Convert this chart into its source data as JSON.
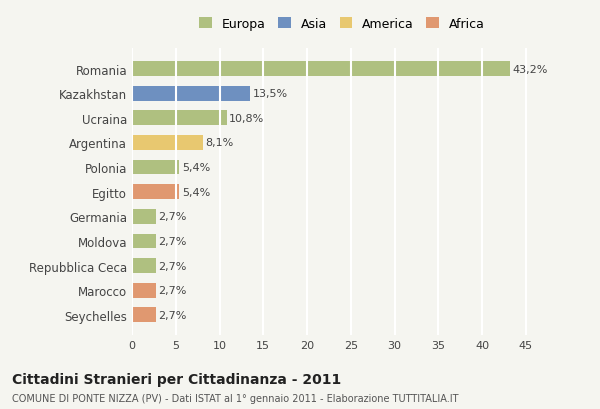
{
  "countries": [
    "Romania",
    "Kazakhstan",
    "Ucraina",
    "Argentina",
    "Polonia",
    "Egitto",
    "Germania",
    "Moldova",
    "Repubblica Ceca",
    "Marocco",
    "Seychelles"
  ],
  "values": [
    43.2,
    13.5,
    10.8,
    8.1,
    5.4,
    5.4,
    2.7,
    2.7,
    2.7,
    2.7,
    2.7
  ],
  "labels": [
    "43,2%",
    "13,5%",
    "10,8%",
    "8,1%",
    "5,4%",
    "5,4%",
    "2,7%",
    "2,7%",
    "2,7%",
    "2,7%",
    "2,7%"
  ],
  "continents": [
    "Europa",
    "Asia",
    "Europa",
    "America",
    "Europa",
    "Africa",
    "Europa",
    "Europa",
    "Europa",
    "Africa",
    "Africa"
  ],
  "colors": {
    "Europa": "#afc080",
    "Asia": "#6e90c0",
    "America": "#e8c870",
    "Africa": "#e09870"
  },
  "legend_order": [
    "Europa",
    "Asia",
    "America",
    "Africa"
  ],
  "xlim": [
    0,
    48
  ],
  "xticks": [
    0,
    5,
    10,
    15,
    20,
    25,
    30,
    35,
    40,
    45
  ],
  "title": "Cittadini Stranieri per Cittadinanza - 2011",
  "subtitle": "COMUNE DI PONTE NIZZA (PV) - Dati ISTAT al 1° gennaio 2011 - Elaborazione TUTTITALIA.IT",
  "background_color": "#f5f5f0",
  "grid_color": "#ffffff",
  "bar_height": 0.6
}
